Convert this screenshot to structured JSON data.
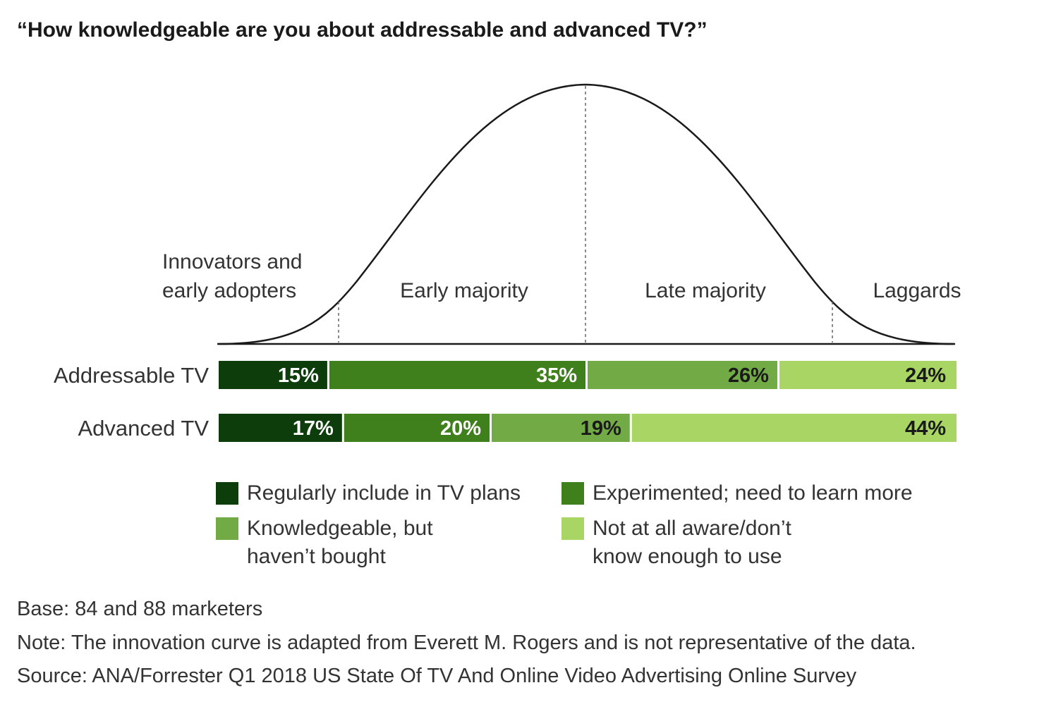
{
  "title": "“How knowledgeable are you about addressable and advanced TV?”",
  "curve_labels": {
    "innovators_line1": "Innovators and",
    "innovators_line2": "early adopters",
    "early_majority": "Early majority",
    "late_majority": "Late majority",
    "laggards": "Laggards"
  },
  "chart_data": {
    "type": "bar",
    "orientation": "horizontal",
    "stacked": true,
    "categories": [
      "Addressable TV",
      "Advanced TV"
    ],
    "series": [
      {
        "name": "Regularly include in TV plans",
        "color": "#0d3d0a",
        "values": [
          15,
          17
        ]
      },
      {
        "name": "Experimented; need to learn more",
        "color": "#3f7f1c",
        "values": [
          35,
          20
        ]
      },
      {
        "name": "Knowledgeable, but haven’t bought",
        "color": "#72ab45",
        "values": [
          26,
          19
        ]
      },
      {
        "name": "Not at all aware/don’t know enough to use",
        "color": "#a8d563",
        "values": [
          24,
          44
        ]
      }
    ],
    "value_labels": [
      [
        "15%",
        "35%",
        "26%",
        "24%"
      ],
      [
        "17%",
        "20%",
        "19%",
        "44%"
      ]
    ],
    "label_colors": [
      "#ffffff",
      "#ffffff",
      "#1a1a1a",
      "#1a1a1a"
    ]
  },
  "legend": [
    {
      "text": "Regularly include in TV plans",
      "color": "#0d3d0a"
    },
    {
      "text": "Experimented; need to learn more",
      "color": "#3f7f1c"
    },
    {
      "text": "Knowledgeable, but\nhaven’t bought",
      "color": "#72ab45"
    },
    {
      "text": "Not at all aware/don’t\nknow enough to use",
      "color": "#a8d563"
    }
  ],
  "footer": {
    "base": "Base: 84 and 88 marketers",
    "note": "Note: The innovation curve is adapted from Everett M. Rogers and is not representative of the data.",
    "source": "Source: ANA/Forrester Q1 2018 US State Of TV And Online Video Advertising Online Survey"
  }
}
